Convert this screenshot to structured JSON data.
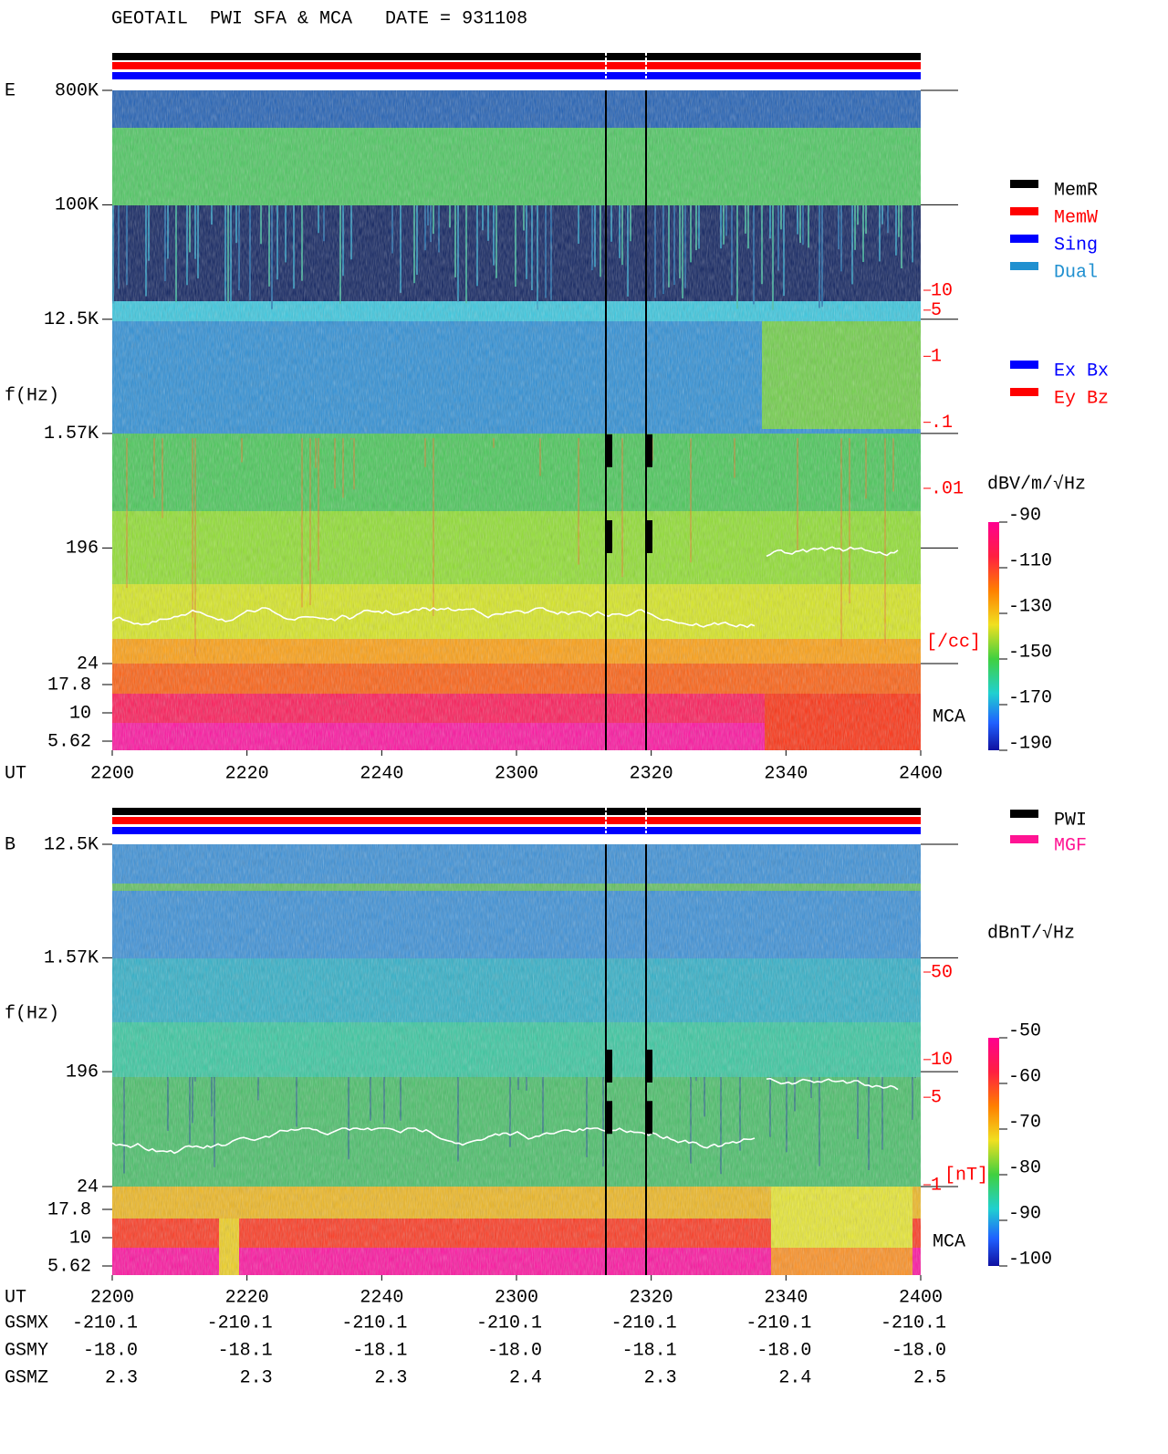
{
  "chart_data": [
    {
      "type": "spectrogram",
      "title": "GEOTAIL  PWI SFA & MCA   DATE = 931108",
      "panel_label": "E",
      "y_label": "f(Hz)",
      "x_label": "UT",
      "yscale": "log",
      "ylim": [
        24,
        800000
      ],
      "yticks": [
        {
          "value": 800000,
          "label": "800K"
        },
        {
          "value": 100000,
          "label": "100K"
        },
        {
          "value": 12500,
          "label": "12.5K"
        },
        {
          "value": 1570,
          "label": "1.57K"
        },
        196,
        24
      ],
      "mca_label": "MCA",
      "mca_yticks": [
        17.8,
        10,
        5.62
      ],
      "xlim": [
        2200,
        2400
      ],
      "xticks": [
        2200,
        2220,
        2240,
        2300,
        2320,
        2340,
        2400
      ],
      "density_yticks": [
        10,
        5,
        1,
        {
          "value": 0.1,
          "label": ".1"
        },
        {
          "value": 0.01,
          "label": ".01"
        }
      ],
      "density_unit": "[/cc]",
      "colorbar_label": "dBV/m/√Hz",
      "clim": [
        -190,
        -90
      ],
      "colorbar_ticks": [
        -90,
        -110,
        -130,
        -150,
        -170,
        -190
      ],
      "legend": [
        {
          "name": "MemR",
          "color": "#000000"
        },
        {
          "name": "MemW",
          "color": "#ff0000"
        },
        {
          "name": "Sing",
          "color": "#0000ff"
        },
        {
          "name": "Dual",
          "color": "#2090d0"
        }
      ],
      "antenna_legend": [
        {
          "name": "Ex Bx",
          "color": "#0000ff"
        },
        {
          "name": "Ey Bz",
          "color": "#ff0000"
        }
      ]
    },
    {
      "type": "spectrogram",
      "panel_label": "B",
      "y_label": "f(Hz)",
      "x_label": "UT",
      "yscale": "log",
      "ylim": [
        24,
        12500
      ],
      "yticks": [
        {
          "value": 12500,
          "label": "12.5K"
        },
        {
          "value": 1570,
          "label": "1.57K"
        },
        196,
        24
      ],
      "mca_label": "MCA",
      "mca_yticks": [
        17.8,
        10,
        5.62
      ],
      "xlim": [
        2200,
        2400
      ],
      "xticks": [
        2200,
        2220,
        2240,
        2300,
        2320,
        2340,
        2400
      ],
      "density_yticks": [
        50,
        10,
        5,
        1
      ],
      "density_unit": "[nT]",
      "colorbar_label": "dBnT/√Hz",
      "clim": [
        -100,
        -50
      ],
      "colorbar_ticks": [
        -50,
        -60,
        -70,
        -80,
        -90,
        -100
      ],
      "legend": [
        {
          "name": "PWI",
          "color": "#000000"
        },
        {
          "name": "MGF",
          "color": "#ff1493"
        }
      ],
      "ephemeris": [
        {
          "name": "GSMX",
          "values": [
            "-210.1",
            "-210.1",
            "-210.1",
            "-210.1",
            "-210.1",
            "-210.1",
            "-210.1"
          ]
        },
        {
          "name": "GSMY",
          "values": [
            "-18.0",
            "-18.1",
            "-18.1",
            "-18.0",
            "-18.1",
            "-18.0",
            "-18.0"
          ]
        },
        {
          "name": "GSMZ",
          "values": [
            "2.3",
            "2.3",
            "2.3",
            "2.4",
            "2.3",
            "2.4",
            "2.5"
          ]
        }
      ]
    }
  ]
}
